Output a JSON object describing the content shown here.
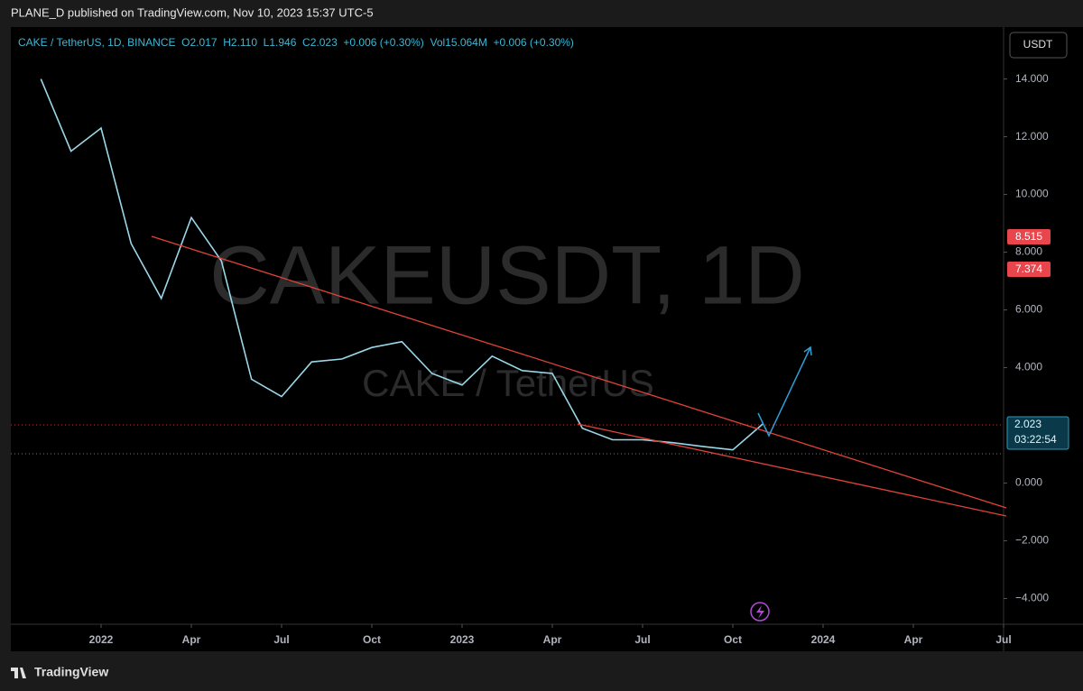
{
  "chart_data": {
    "type": "line",
    "published": "PLANE_D published on TradingView.com, Nov 10, 2023 15:37 UTC-5",
    "symbol_info": "CAKE / TetherUS, 1D, BINANCE  O2.017  H2.110  L1.946  C2.023  +0.006 (+0.30%)  Vol15.064M  +0.006 (+0.30%)",
    "currency": "USDT",
    "watermark": "CAKEUSDT, 1D",
    "watermark_subtitle": "CAKE / TetherUS",
    "price_tags": [
      "8.515",
      "7.374"
    ],
    "last_price": "2.023",
    "countdown": "03:22:54",
    "brand": "TradingView",
    "x": [
      "2021-11",
      "2021-12",
      "2022-01",
      "2022-02",
      "2022-03",
      "2022-04",
      "2022-05",
      "2022-06",
      "2022-07",
      "2022-08",
      "2022-09",
      "2022-10",
      "2022-11",
      "2022-12",
      "2023-01",
      "2023-02",
      "2023-03",
      "2023-04",
      "2023-05",
      "2023-06",
      "2023-07",
      "2023-08",
      "2023-09",
      "2023-10",
      "2023-11"
    ],
    "series": [
      {
        "name": "CAKE / TetherUS",
        "color": "#9ad7e8",
        "values": [
          14,
          11.5,
          12.3,
          8.3,
          6.4,
          9.2,
          7.7,
          3.6,
          3.0,
          4.2,
          4.3,
          4.7,
          4.9,
          3.8,
          3.4,
          4.4,
          3.9,
          3.8,
          1.9,
          1.5,
          1.5,
          1.4,
          1.27,
          1.15,
          2.05
        ]
      }
    ],
    "xlim": [
      "2021-10",
      "2024-07"
    ],
    "xticks": [
      {
        "value": "2022-01",
        "label": "2022"
      },
      {
        "value": "2022-04",
        "label": "Apr"
      },
      {
        "value": "2022-07",
        "label": "Jul"
      },
      {
        "value": "2022-10",
        "label": "Oct"
      },
      {
        "value": "2023-01",
        "label": "2023"
      },
      {
        "value": "2023-04",
        "label": "Apr"
      },
      {
        "value": "2023-07",
        "label": "Jul"
      },
      {
        "value": "2023-10",
        "label": "Oct"
      },
      {
        "value": "2024-01",
        "label": "2024"
      },
      {
        "value": "2024-04",
        "label": "Apr"
      },
      {
        "value": "2024-07",
        "label": "Jul"
      }
    ],
    "ylim": [
      -4.89,
      15.8
    ],
    "yticks": [
      {
        "value": 14,
        "label": "14.000"
      },
      {
        "value": 12,
        "label": "12.000"
      },
      {
        "value": 10,
        "label": "10.000"
      },
      {
        "value": 8,
        "label": "8.000"
      },
      {
        "value": 6,
        "label": "6.000"
      },
      {
        "value": 4,
        "label": "4.000"
      },
      {
        "value": 0,
        "label": "0.000"
      },
      {
        "value": -2,
        "label": "−2.000"
      },
      {
        "value": -4,
        "label": "−4.000"
      }
    ],
    "grid": false
  }
}
